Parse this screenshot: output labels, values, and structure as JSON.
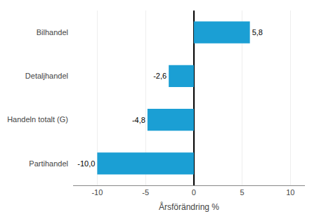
{
  "chart_data": {
    "type": "bar",
    "orientation": "horizontal",
    "categories": [
      "Partihandel",
      "Handeln totalt (G)",
      "Detaljhandel",
      "Bilhandel"
    ],
    "values": [
      -10.0,
      -4.8,
      -2.6,
      5.8
    ],
    "value_labels": [
      "-10,0",
      "-4,8",
      "-2,6",
      "5,8"
    ],
    "data_labels": true,
    "color": "#1b9fd4",
    "xlabel": "Årsförändring %",
    "xlim": [
      -12.5,
      11.5
    ],
    "xticks": [
      -10,
      -5,
      0,
      5,
      10
    ],
    "grid": true
  }
}
